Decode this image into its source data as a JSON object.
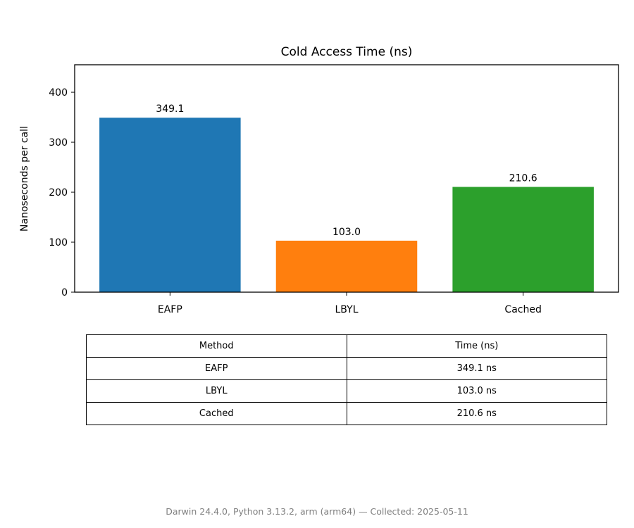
{
  "chart_data": {
    "type": "bar",
    "title": "Cold Access Time (ns)",
    "xlabel": "",
    "ylabel": "Nanoseconds per call",
    "categories": [
      "EAFP",
      "LBYL",
      "Cached"
    ],
    "values": [
      349.1,
      103.0,
      210.6
    ],
    "value_labels": [
      "349.1",
      "103.0",
      "210.6"
    ],
    "colors": [
      "#1f77b4",
      "#ff7f0e",
      "#2ca02c"
    ],
    "ylim": [
      0,
      455
    ],
    "yticks": [
      0,
      100,
      200,
      300,
      400
    ],
    "grid": false,
    "legend": false
  },
  "table": {
    "headers": [
      "Method",
      "Time (ns)"
    ],
    "rows": [
      [
        "EAFP",
        "349.1 ns"
      ],
      [
        "LBYL",
        "103.0 ns"
      ],
      [
        "Cached",
        "210.6 ns"
      ]
    ]
  },
  "footer": "Darwin 24.4.0, Python 3.13.2, arm (arm64) — Collected: 2025-05-11"
}
